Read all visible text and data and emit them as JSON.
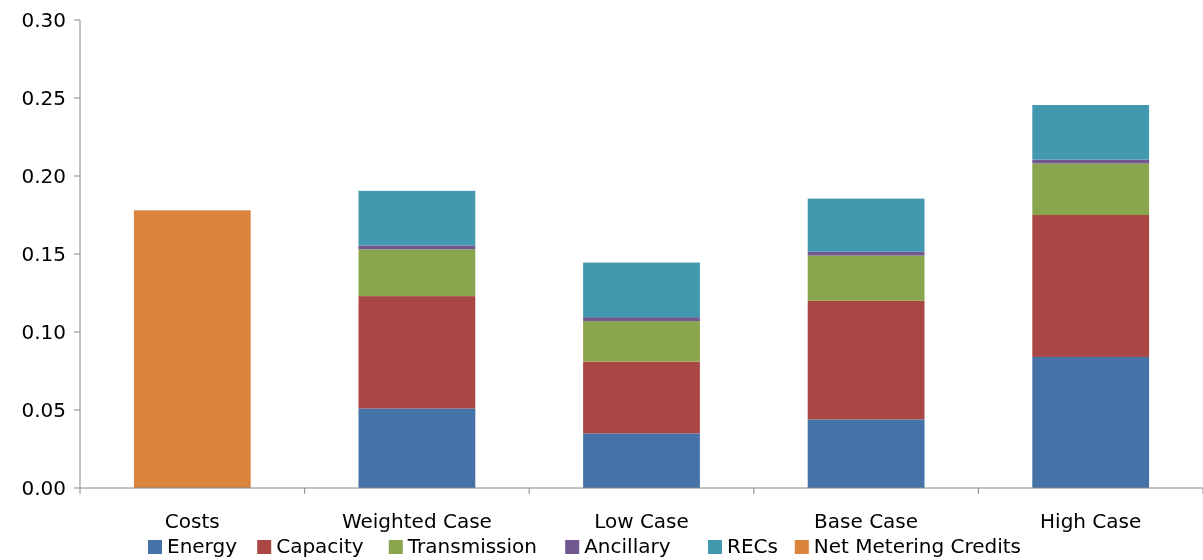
{
  "chart_data": {
    "type": "bar",
    "stacked": true,
    "categories": [
      "Costs",
      "Weighted Case",
      "Low Case",
      "Base Case",
      "High Case"
    ],
    "series": [
      {
        "name": "Energy",
        "color": "#4572a7",
        "values": [
          null,
          0.051,
          0.035,
          0.044,
          0.084
        ]
      },
      {
        "name": "Capacity",
        "color": "#aa4643",
        "values": [
          null,
          0.072,
          0.046,
          0.076,
          0.091
        ]
      },
      {
        "name": "Transmission",
        "color": "#89a54e",
        "values": [
          null,
          0.03,
          0.026,
          0.029,
          0.033
        ]
      },
      {
        "name": "Ancillary",
        "color": "#71588f",
        "values": [
          null,
          0.0025,
          0.0025,
          0.0025,
          0.0025
        ]
      },
      {
        "name": "RECs",
        "color": "#4198af",
        "values": [
          null,
          0.035,
          0.035,
          0.034,
          0.035
        ]
      },
      {
        "name": "Net Metering Credits",
        "color": "#db843d",
        "values": [
          0.178,
          null,
          null,
          null,
          null
        ]
      }
    ],
    "ylim": [
      0,
      0.3
    ],
    "yticks": [
      {
        "value": 0,
        "label": "0.00"
      },
      {
        "value": 0.05,
        "label": "0.05"
      },
      {
        "value": 0.1,
        "label": "0.10"
      },
      {
        "value": 0.15,
        "label": "0.15"
      },
      {
        "value": 0.2,
        "label": "0.20"
      },
      {
        "value": 0.25,
        "label": "0.25"
      },
      {
        "value": 0.3,
        "label": "0.30"
      }
    ],
    "grid": false,
    "legend": "bottom"
  }
}
